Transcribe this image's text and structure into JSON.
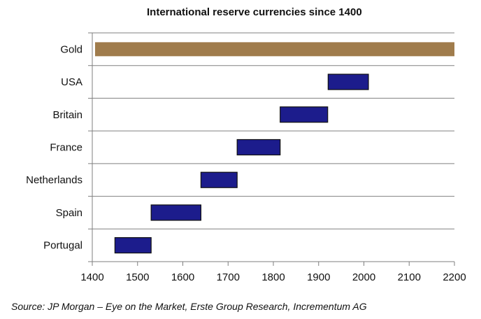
{
  "chart_data": {
    "type": "bar",
    "orientation": "horizontal-range",
    "title": "International reserve currencies since 1400",
    "categories": [
      "Gold",
      "USA",
      "Britain",
      "France",
      "Netherlands",
      "Spain",
      "Portugal"
    ],
    "ranges": [
      {
        "category": "Gold",
        "start": 1400,
        "end": 2200,
        "color": "#a07c4c"
      },
      {
        "category": "USA",
        "start": 1921,
        "end": 2010,
        "color": "#1c1c8c"
      },
      {
        "category": "Britain",
        "start": 1815,
        "end": 1920,
        "color": "#1c1c8c"
      },
      {
        "category": "France",
        "start": 1720,
        "end": 1815,
        "color": "#1c1c8c"
      },
      {
        "category": "Netherlands",
        "start": 1640,
        "end": 1720,
        "color": "#1c1c8c"
      },
      {
        "category": "Spain",
        "start": 1530,
        "end": 1640,
        "color": "#1c1c8c"
      },
      {
        "category": "Portugal",
        "start": 1450,
        "end": 1530,
        "color": "#1c1c8c"
      }
    ],
    "xticks": [
      "1400",
      "1500",
      "1600",
      "1700",
      "1800",
      "1900",
      "2000",
      "2100",
      "2200"
    ],
    "xlim": [
      1400,
      2200
    ],
    "grid": "horizontal",
    "xlabel": "",
    "ylabel": ""
  },
  "source": "Source: JP Morgan – Eye on the Market, Erste Group Research, Incrementum AG"
}
